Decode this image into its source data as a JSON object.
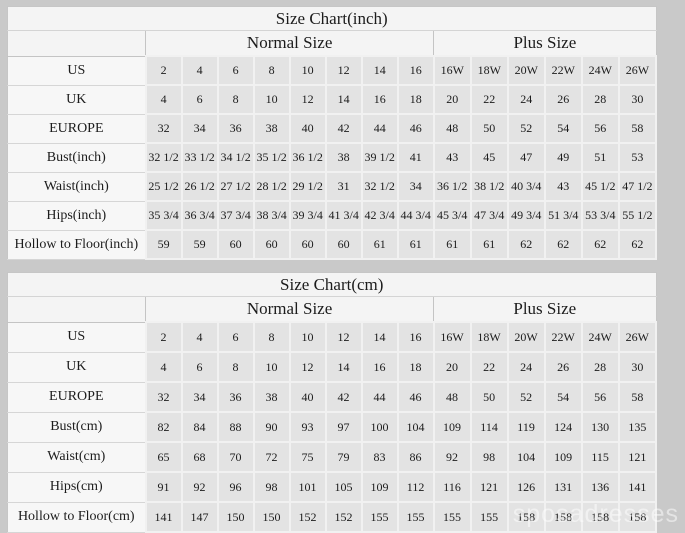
{
  "page": {
    "background_color": "#c9c9c9",
    "watermark": "sposadresses"
  },
  "chart_data": [
    {
      "type": "table",
      "title": "Size Chart(inch)",
      "column_groups": [
        {
          "label": "Normal Size",
          "span": 8
        },
        {
          "label": "Plus Size",
          "span": 6
        }
      ],
      "rows": [
        {
          "label": "US",
          "values": [
            "2",
            "4",
            "6",
            "8",
            "10",
            "12",
            "14",
            "16",
            "16W",
            "18W",
            "20W",
            "22W",
            "24W",
            "26W"
          ]
        },
        {
          "label": "UK",
          "values": [
            "4",
            "6",
            "8",
            "10",
            "12",
            "14",
            "16",
            "18",
            "20",
            "22",
            "24",
            "26",
            "28",
            "30"
          ]
        },
        {
          "label": "EUROPE",
          "values": [
            "32",
            "34",
            "36",
            "38",
            "40",
            "42",
            "44",
            "46",
            "48",
            "50",
            "52",
            "54",
            "56",
            "58"
          ]
        },
        {
          "label": "Bust(inch)",
          "values": [
            "32 1/2",
            "33 1/2",
            "34 1/2",
            "35 1/2",
            "36 1/2",
            "38",
            "39 1/2",
            "41",
            "43",
            "45",
            "47",
            "49",
            "51",
            "53"
          ]
        },
        {
          "label": "Waist(inch)",
          "values": [
            "25 1/2",
            "26 1/2",
            "27 1/2",
            "28 1/2",
            "29 1/2",
            "31",
            "32 1/2",
            "34",
            "36 1/2",
            "38 1/2",
            "40 3/4",
            "43",
            "45 1/2",
            "47 1/2"
          ]
        },
        {
          "label": "Hips(inch)",
          "values": [
            "35 3/4",
            "36 3/4",
            "37 3/4",
            "38 3/4",
            "39 3/4",
            "41 3/4",
            "42 3/4",
            "44 3/4",
            "45 3/4",
            "47 3/4",
            "49 3/4",
            "51 3/4",
            "53 3/4",
            "55 1/2"
          ]
        },
        {
          "label": "Hollow to Floor(inch)",
          "values": [
            "59",
            "59",
            "60",
            "60",
            "60",
            "60",
            "61",
            "61",
            "61",
            "61",
            "62",
            "62",
            "62",
            "62"
          ]
        }
      ]
    },
    {
      "type": "table",
      "title": "Size Chart(cm)",
      "column_groups": [
        {
          "label": "Normal Size",
          "span": 8
        },
        {
          "label": "Plus Size",
          "span": 6
        }
      ],
      "rows": [
        {
          "label": "US",
          "values": [
            "2",
            "4",
            "6",
            "8",
            "10",
            "12",
            "14",
            "16",
            "16W",
            "18W",
            "20W",
            "22W",
            "24W",
            "26W"
          ]
        },
        {
          "label": "UK",
          "values": [
            "4",
            "6",
            "8",
            "10",
            "12",
            "14",
            "16",
            "18",
            "20",
            "22",
            "24",
            "26",
            "28",
            "30"
          ]
        },
        {
          "label": "EUROPE",
          "values": [
            "32",
            "34",
            "36",
            "38",
            "40",
            "42",
            "44",
            "46",
            "48",
            "50",
            "52",
            "54",
            "56",
            "58"
          ]
        },
        {
          "label": "Bust(cm)",
          "values": [
            "82",
            "84",
            "88",
            "90",
            "93",
            "97",
            "100",
            "104",
            "109",
            "114",
            "119",
            "124",
            "130",
            "135"
          ]
        },
        {
          "label": "Waist(cm)",
          "values": [
            "65",
            "68",
            "70",
            "72",
            "75",
            "79",
            "83",
            "86",
            "92",
            "98",
            "104",
            "109",
            "115",
            "121"
          ]
        },
        {
          "label": "Hips(cm)",
          "values": [
            "91",
            "92",
            "96",
            "98",
            "101",
            "105",
            "109",
            "112",
            "116",
            "121",
            "126",
            "131",
            "136",
            "141"
          ]
        },
        {
          "label": "Hollow to Floor(cm)",
          "values": [
            "141",
            "147",
            "150",
            "150",
            "152",
            "152",
            "155",
            "155",
            "155",
            "155",
            "158",
            "158",
            "158",
            "158"
          ]
        }
      ]
    }
  ]
}
